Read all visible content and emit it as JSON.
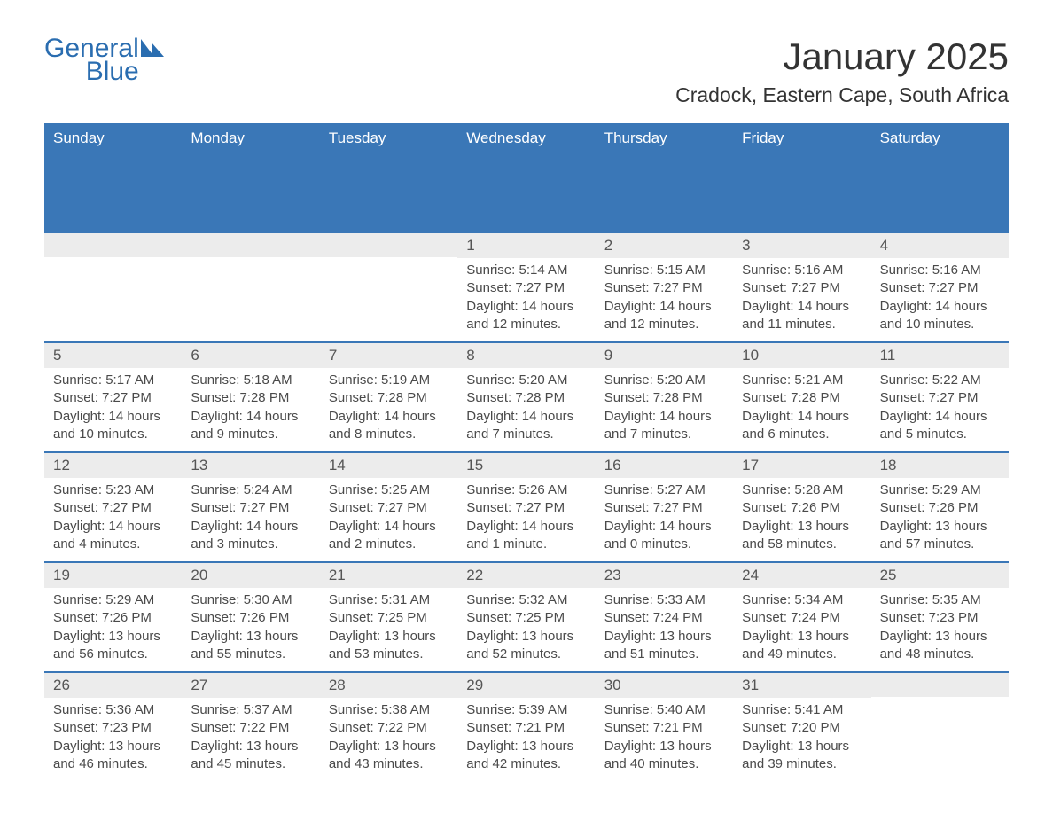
{
  "brand": {
    "word1": "General",
    "word2": "Blue",
    "color": "#2a6db0"
  },
  "title": "January 2025",
  "subtitle": "Cradock, Eastern Cape, South Africa",
  "colors": {
    "header_bg": "#3a77b7",
    "header_text": "#ffffff",
    "daynum_bg": "#ececec",
    "border": "#3a77b7",
    "text": "#4a4a4a"
  },
  "day_headers": [
    "Sunday",
    "Monday",
    "Tuesday",
    "Wednesday",
    "Thursday",
    "Friday",
    "Saturday"
  ],
  "weeks": [
    [
      {
        "empty": true
      },
      {
        "empty": true
      },
      {
        "empty": true
      },
      {
        "n": "1",
        "sr": "Sunrise: 5:14 AM",
        "ss": "Sunset: 7:27 PM",
        "d1": "Daylight: 14 hours",
        "d2": "and 12 minutes."
      },
      {
        "n": "2",
        "sr": "Sunrise: 5:15 AM",
        "ss": "Sunset: 7:27 PM",
        "d1": "Daylight: 14 hours",
        "d2": "and 12 minutes."
      },
      {
        "n": "3",
        "sr": "Sunrise: 5:16 AM",
        "ss": "Sunset: 7:27 PM",
        "d1": "Daylight: 14 hours",
        "d2": "and 11 minutes."
      },
      {
        "n": "4",
        "sr": "Sunrise: 5:16 AM",
        "ss": "Sunset: 7:27 PM",
        "d1": "Daylight: 14 hours",
        "d2": "and 10 minutes."
      }
    ],
    [
      {
        "n": "5",
        "sr": "Sunrise: 5:17 AM",
        "ss": "Sunset: 7:27 PM",
        "d1": "Daylight: 14 hours",
        "d2": "and 10 minutes."
      },
      {
        "n": "6",
        "sr": "Sunrise: 5:18 AM",
        "ss": "Sunset: 7:28 PM",
        "d1": "Daylight: 14 hours",
        "d2": "and 9 minutes."
      },
      {
        "n": "7",
        "sr": "Sunrise: 5:19 AM",
        "ss": "Sunset: 7:28 PM",
        "d1": "Daylight: 14 hours",
        "d2": "and 8 minutes."
      },
      {
        "n": "8",
        "sr": "Sunrise: 5:20 AM",
        "ss": "Sunset: 7:28 PM",
        "d1": "Daylight: 14 hours",
        "d2": "and 7 minutes."
      },
      {
        "n": "9",
        "sr": "Sunrise: 5:20 AM",
        "ss": "Sunset: 7:28 PM",
        "d1": "Daylight: 14 hours",
        "d2": "and 7 minutes."
      },
      {
        "n": "10",
        "sr": "Sunrise: 5:21 AM",
        "ss": "Sunset: 7:28 PM",
        "d1": "Daylight: 14 hours",
        "d2": "and 6 minutes."
      },
      {
        "n": "11",
        "sr": "Sunrise: 5:22 AM",
        "ss": "Sunset: 7:27 PM",
        "d1": "Daylight: 14 hours",
        "d2": "and 5 minutes."
      }
    ],
    [
      {
        "n": "12",
        "sr": "Sunrise: 5:23 AM",
        "ss": "Sunset: 7:27 PM",
        "d1": "Daylight: 14 hours",
        "d2": "and 4 minutes."
      },
      {
        "n": "13",
        "sr": "Sunrise: 5:24 AM",
        "ss": "Sunset: 7:27 PM",
        "d1": "Daylight: 14 hours",
        "d2": "and 3 minutes."
      },
      {
        "n": "14",
        "sr": "Sunrise: 5:25 AM",
        "ss": "Sunset: 7:27 PM",
        "d1": "Daylight: 14 hours",
        "d2": "and 2 minutes."
      },
      {
        "n": "15",
        "sr": "Sunrise: 5:26 AM",
        "ss": "Sunset: 7:27 PM",
        "d1": "Daylight: 14 hours",
        "d2": "and 1 minute."
      },
      {
        "n": "16",
        "sr": "Sunrise: 5:27 AM",
        "ss": "Sunset: 7:27 PM",
        "d1": "Daylight: 14 hours",
        "d2": "and 0 minutes."
      },
      {
        "n": "17",
        "sr": "Sunrise: 5:28 AM",
        "ss": "Sunset: 7:26 PM",
        "d1": "Daylight: 13 hours",
        "d2": "and 58 minutes."
      },
      {
        "n": "18",
        "sr": "Sunrise: 5:29 AM",
        "ss": "Sunset: 7:26 PM",
        "d1": "Daylight: 13 hours",
        "d2": "and 57 minutes."
      }
    ],
    [
      {
        "n": "19",
        "sr": "Sunrise: 5:29 AM",
        "ss": "Sunset: 7:26 PM",
        "d1": "Daylight: 13 hours",
        "d2": "and 56 minutes."
      },
      {
        "n": "20",
        "sr": "Sunrise: 5:30 AM",
        "ss": "Sunset: 7:26 PM",
        "d1": "Daylight: 13 hours",
        "d2": "and 55 minutes."
      },
      {
        "n": "21",
        "sr": "Sunrise: 5:31 AM",
        "ss": "Sunset: 7:25 PM",
        "d1": "Daylight: 13 hours",
        "d2": "and 53 minutes."
      },
      {
        "n": "22",
        "sr": "Sunrise: 5:32 AM",
        "ss": "Sunset: 7:25 PM",
        "d1": "Daylight: 13 hours",
        "d2": "and 52 minutes."
      },
      {
        "n": "23",
        "sr": "Sunrise: 5:33 AM",
        "ss": "Sunset: 7:24 PM",
        "d1": "Daylight: 13 hours",
        "d2": "and 51 minutes."
      },
      {
        "n": "24",
        "sr": "Sunrise: 5:34 AM",
        "ss": "Sunset: 7:24 PM",
        "d1": "Daylight: 13 hours",
        "d2": "and 49 minutes."
      },
      {
        "n": "25",
        "sr": "Sunrise: 5:35 AM",
        "ss": "Sunset: 7:23 PM",
        "d1": "Daylight: 13 hours",
        "d2": "and 48 minutes."
      }
    ],
    [
      {
        "n": "26",
        "sr": "Sunrise: 5:36 AM",
        "ss": "Sunset: 7:23 PM",
        "d1": "Daylight: 13 hours",
        "d2": "and 46 minutes."
      },
      {
        "n": "27",
        "sr": "Sunrise: 5:37 AM",
        "ss": "Sunset: 7:22 PM",
        "d1": "Daylight: 13 hours",
        "d2": "and 45 minutes."
      },
      {
        "n": "28",
        "sr": "Sunrise: 5:38 AM",
        "ss": "Sunset: 7:22 PM",
        "d1": "Daylight: 13 hours",
        "d2": "and 43 minutes."
      },
      {
        "n": "29",
        "sr": "Sunrise: 5:39 AM",
        "ss": "Sunset: 7:21 PM",
        "d1": "Daylight: 13 hours",
        "d2": "and 42 minutes."
      },
      {
        "n": "30",
        "sr": "Sunrise: 5:40 AM",
        "ss": "Sunset: 7:21 PM",
        "d1": "Daylight: 13 hours",
        "d2": "and 40 minutes."
      },
      {
        "n": "31",
        "sr": "Sunrise: 5:41 AM",
        "ss": "Sunset: 7:20 PM",
        "d1": "Daylight: 13 hours",
        "d2": "and 39 minutes."
      },
      {
        "empty": true
      }
    ]
  ]
}
